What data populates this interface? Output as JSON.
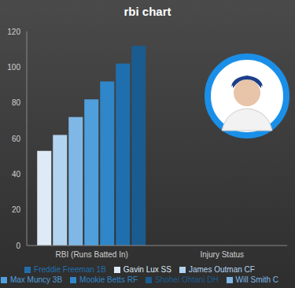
{
  "chart_data": {
    "type": "bar",
    "title": "rbi chart",
    "categories": [
      "RBI (Runs Batted In)",
      "Injury Status"
    ],
    "series": [
      {
        "name": "Gavin Lux SS",
        "color": "#deebf7",
        "values": [
          53,
          0
        ]
      },
      {
        "name": "James Outman CF",
        "color": "#b3d4f0",
        "values": [
          62,
          0
        ]
      },
      {
        "name": "Will Smith C",
        "color": "#7fb8e6",
        "values": [
          72,
          0
        ]
      },
      {
        "name": "Max Muncy 3B",
        "color": "#4f9fdc",
        "values": [
          82,
          0
        ]
      },
      {
        "name": "Mookie Betts RF",
        "color": "#2f86c8",
        "values": [
          92,
          0
        ]
      },
      {
        "name": "Freddie Freeman 1B",
        "color": "#1f6fae",
        "values": [
          102,
          0
        ]
      },
      {
        "name": "Shohei Ohtani DH",
        "color": "#1a5c8f",
        "values": [
          112,
          0
        ]
      }
    ],
    "ylim": [
      0,
      120
    ],
    "yticks": [
      0,
      20,
      40,
      60,
      80,
      100,
      120
    ],
    "grid": false,
    "legend": "bottom"
  }
}
